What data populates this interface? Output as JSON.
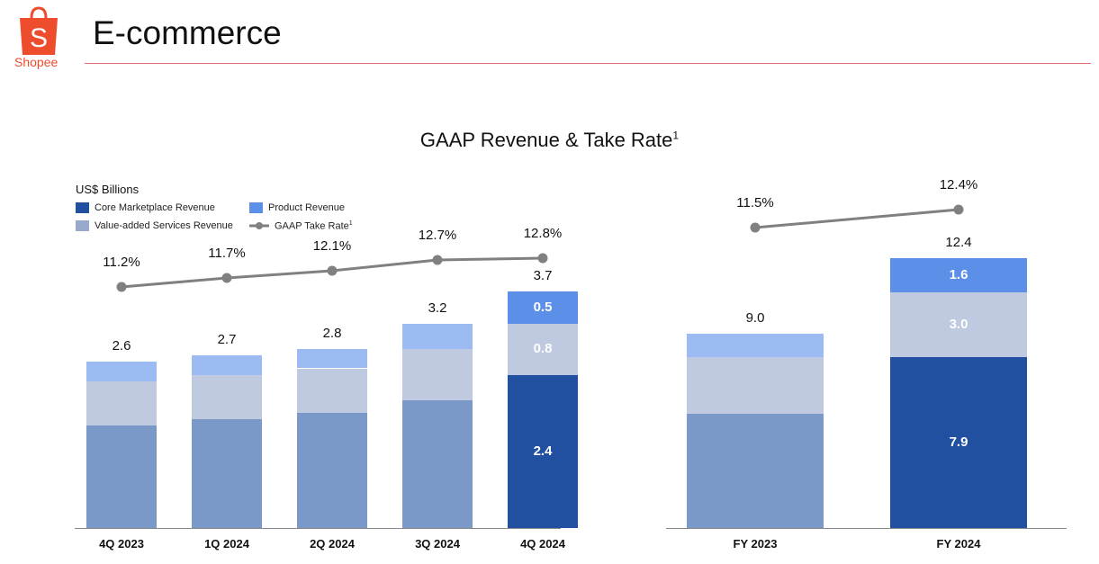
{
  "header": {
    "title": "E-commerce",
    "logo_text": "Shopee",
    "logo_letter": "S"
  },
  "colors": {
    "core": "#2150a0",
    "vas": "#bfc9e0",
    "product": "#5b8fe8",
    "core_faded": "#7a99c8",
    "product_faded": "#9bbbf2",
    "line": "#808080",
    "brand": "#ee4d2d"
  },
  "chart_data": {
    "type": "bar",
    "title": "GAAP Revenue & Take Rate",
    "title_sup": "1",
    "ylabel": "US$ Billions",
    "legend": {
      "core": "Core Marketplace Revenue",
      "product": "Product Revenue",
      "vas": "Value-added Services Revenue",
      "take_rate": "GAAP Take Rate",
      "take_rate_sup": "1"
    },
    "panels": [
      {
        "name": "quarterly",
        "categories": [
          "4Q 2023",
          "1Q 2024",
          "2Q 2024",
          "3Q 2024",
          "4Q 2024"
        ],
        "series": [
          {
            "name": "Core Marketplace Revenue",
            "values": [
              1.6,
              1.7,
              1.8,
              2.0,
              2.4
            ]
          },
          {
            "name": "Value-added Services Revenue",
            "values": [
              0.7,
              0.7,
              0.7,
              0.8,
              0.8
            ]
          },
          {
            "name": "Product Revenue",
            "values": [
              0.3,
              0.3,
              0.3,
              0.4,
              0.5
            ]
          }
        ],
        "totals": [
          "2.6",
          "2.7",
          "2.8",
          "3.2",
          "3.7"
        ],
        "take_rate": [
          11.2,
          11.7,
          12.1,
          12.7,
          12.8
        ],
        "take_rate_labels": [
          "11.2%",
          "11.7%",
          "12.1%",
          "12.7%",
          "12.8%"
        ],
        "highlight_index": 4,
        "segment_labels": [
          "2.4",
          "0.8",
          "0.5"
        ]
      },
      {
        "name": "annual",
        "categories": [
          "FY 2023",
          "FY 2024"
        ],
        "series": [
          {
            "name": "Core Marketplace Revenue",
            "values": [
              5.3,
              7.9
            ]
          },
          {
            "name": "Value-added Services Revenue",
            "values": [
              2.6,
              3.0
            ]
          },
          {
            "name": "Product Revenue",
            "values": [
              1.1,
              1.6
            ]
          }
        ],
        "totals": [
          "9.0",
          "12.4"
        ],
        "take_rate": [
          11.5,
          12.4
        ],
        "take_rate_labels": [
          "11.5%",
          "12.4%"
        ],
        "highlight_index": 1,
        "segment_labels": [
          "7.9",
          "3.0",
          "1.6"
        ]
      }
    ]
  }
}
